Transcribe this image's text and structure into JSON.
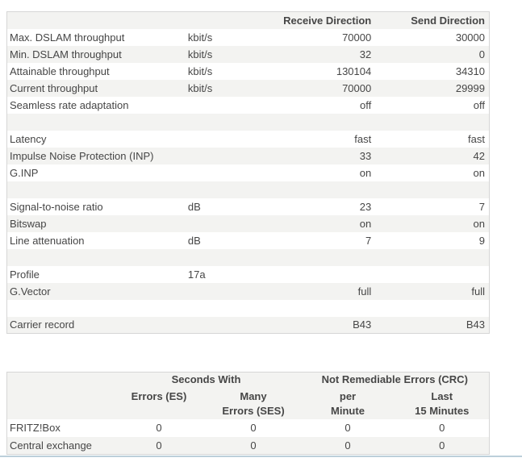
{
  "dsl_table": {
    "headers": {
      "receive": "Receive Direction",
      "send": "Send Direction"
    },
    "rows": [
      {
        "label": "Max. DSLAM throughput",
        "unit": "kbit/s",
        "receive": "70000",
        "send": "30000"
      },
      {
        "label": "Min. DSLAM throughput",
        "unit": "kbit/s",
        "receive": "32",
        "send": "0"
      },
      {
        "label": "Attainable throughput",
        "unit": "kbit/s",
        "receive": "130104",
        "send": "34310"
      },
      {
        "label": "Current throughput",
        "unit": "kbit/s",
        "receive": "70000",
        "send": "29999"
      },
      {
        "label": "Seamless rate adaptation",
        "unit": "",
        "receive": "off",
        "send": "off"
      },
      {
        "label": "",
        "unit": "",
        "receive": "",
        "send": ""
      },
      {
        "label": "Latency",
        "unit": "",
        "receive": "fast",
        "send": "fast"
      },
      {
        "label": "Impulse Noise Protection (INP)",
        "unit": "",
        "receive": "33",
        "send": "42"
      },
      {
        "label": "G.INP",
        "unit": "",
        "receive": "on",
        "send": "on"
      },
      {
        "label": "",
        "unit": "",
        "receive": "",
        "send": ""
      },
      {
        "label": "Signal-to-noise ratio",
        "unit": "dB",
        "receive": "23",
        "send": "7"
      },
      {
        "label": "Bitswap",
        "unit": "",
        "receive": "on",
        "send": "on"
      },
      {
        "label": "Line attenuation",
        "unit": "dB",
        "receive": "7",
        "send": "9"
      },
      {
        "label": "",
        "unit": "",
        "receive": "",
        "send": ""
      },
      {
        "label": "Profile",
        "unit": "17a",
        "receive": "",
        "send": ""
      },
      {
        "label": "G.Vector",
        "unit": "",
        "receive": "full",
        "send": "full"
      },
      {
        "label": "",
        "unit": "",
        "receive": "",
        "send": ""
      },
      {
        "label": "Carrier record",
        "unit": "",
        "receive": "B43",
        "send": "B43"
      }
    ]
  },
  "error_table": {
    "group_headers": {
      "seconds_with": "Seconds With",
      "crc": "Not Remediable Errors (CRC)"
    },
    "col_headers": {
      "es": "Errors (ES)",
      "ses": "Many\nErrors (SES)",
      "per_minute": "per\nMinute",
      "last_15": "Last\n15 Minutes"
    },
    "rows": [
      {
        "label": "FRITZ!Box",
        "es": "0",
        "ses": "0",
        "per_minute": "0",
        "last_15": "0"
      },
      {
        "label": "Central exchange",
        "es": "0",
        "ses": "0",
        "per_minute": "0",
        "last_15": "0"
      }
    ]
  },
  "colors": {
    "stripe": "#f3f3f1",
    "table_border": "#d6d6d6",
    "text": "#464646",
    "bottom_divider": "#bccfda"
  }
}
